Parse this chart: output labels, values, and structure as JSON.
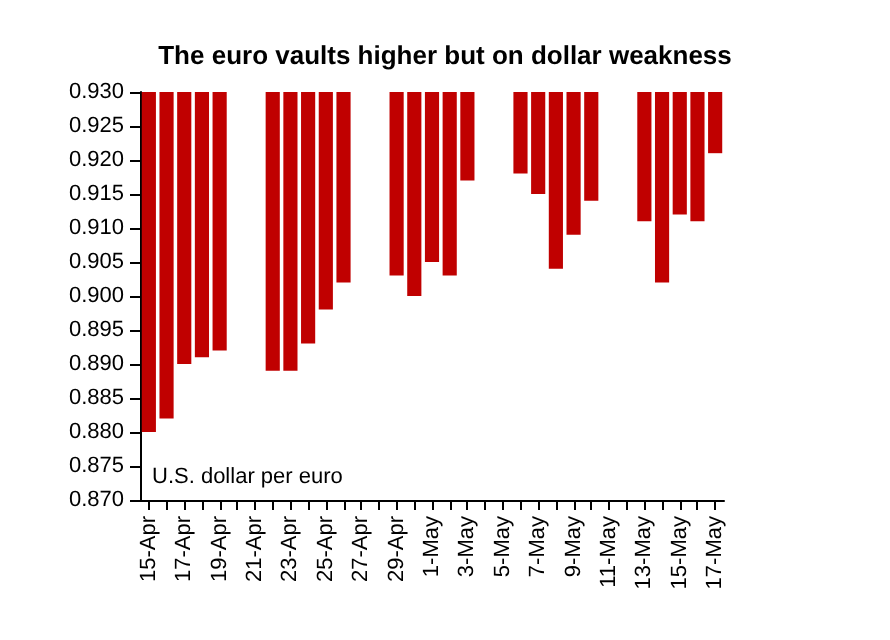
{
  "chart_data": {
    "type": "bar",
    "title": "The euro vaults higher but on dollar weakness",
    "categories": [
      "15-Apr",
      null,
      "17-Apr",
      null,
      "19-Apr",
      null,
      "21-Apr",
      null,
      "23-Apr",
      null,
      "25-Apr",
      null,
      "27-Apr",
      null,
      "29-Apr",
      null,
      "1-May",
      null,
      "3-May",
      null,
      "5-May",
      null,
      "7-May",
      null,
      "9-May",
      null,
      "11-May",
      null,
      "13-May",
      null,
      "15-May",
      null,
      "17-May"
    ],
    "series": [
      {
        "color": "#c00000",
        "base": [
          0.88,
          0.882,
          0.89,
          0.891,
          0.892,
          null,
          null,
          0.889,
          0.889,
          0.893,
          0.898,
          0.902,
          null,
          null,
          0.903,
          0.9,
          0.905,
          0.903,
          0.917,
          null,
          null,
          0.918,
          0.915,
          0.904,
          0.909,
          0.914,
          null,
          null,
          0.911,
          0.902,
          0.912,
          0.911,
          0.921
        ],
        "values": [
          0.05,
          0.048,
          0.04,
          0.039,
          0.038,
          null,
          null,
          0.041,
          0.041,
          0.037,
          0.032,
          0.028,
          null,
          null,
          0.027,
          0.03,
          0.025,
          0.027,
          0.013,
          null,
          null,
          0.012,
          0.015,
          0.026,
          0.021,
          0.016,
          null,
          null,
          0.019,
          0.028,
          0.018,
          0.019,
          0.009
        ]
      }
    ],
    "ylim": [
      0.87,
      0.93
    ],
    "yticks": [
      {
        "value": 0.87,
        "label": "0.870"
      },
      0.875,
      {
        "value": 0.88,
        "label": "0.880"
      },
      0.885,
      {
        "value": 0.89,
        "label": "0.890"
      },
      0.895,
      {
        "value": 0.9,
        "label": "0.900"
      },
      0.905,
      {
        "value": 0.91,
        "label": "0.910"
      },
      0.915,
      {
        "value": 0.92,
        "label": "0.920"
      },
      0.925,
      {
        "value": 0.93,
        "label": "0.930"
      }
    ],
    "annotations": [
      "U.S. dollar per euro"
    ],
    "grid": false
  }
}
